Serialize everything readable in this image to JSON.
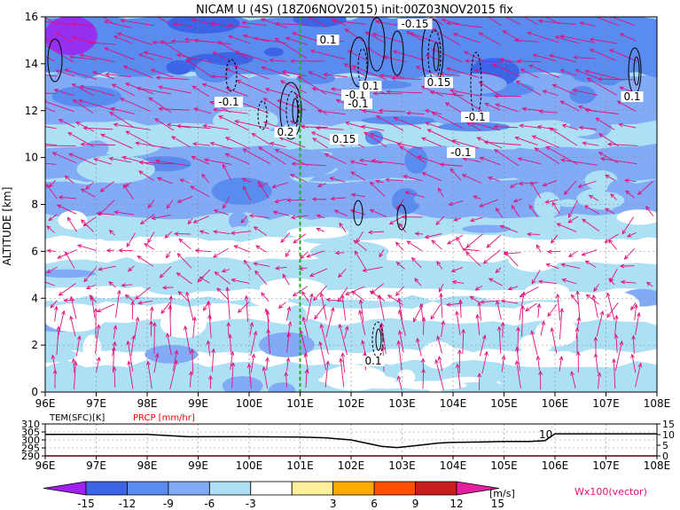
{
  "chart_data": [
    {
      "type": "heatmap",
      "title": "NICAM U (4S) (18Z06NOV2015) init:00Z03NOV2015 fix",
      "xlabel": "",
      "ylabel": "ALTITUDE [km]",
      "xlim": [
        96,
        108
      ],
      "ylim": [
        0,
        16
      ],
      "x_ticks": [
        "96E",
        "97E",
        "98E",
        "99E",
        "100E",
        "101E",
        "102E",
        "103E",
        "104E",
        "105E",
        "106E",
        "107E",
        "108E"
      ],
      "y_ticks": [
        "0",
        "2",
        "4",
        "6",
        "8",
        "10",
        "12",
        "14",
        "16"
      ],
      "marker_line_lon": 101,
      "colorbar": {
        "unit": "[m/s]",
        "levels": [
          "-15",
          "-12",
          "-9",
          "-6",
          "-3",
          "3",
          "6",
          "9",
          "12",
          "15"
        ],
        "colors": [
          "#a020f0",
          "#3c64e6",
          "#5a8cf0",
          "#82aaf5",
          "#aee0f5",
          "#ffffff",
          "#fff09a",
          "#ffaa00",
          "#ff5000",
          "#c81e1e",
          "#e61ea0"
        ]
      },
      "vector_label": "Wx100(vector)",
      "vector_color": "#e0107a",
      "contour_labels": [
        "0.1",
        "-0.1",
        "0.15",
        "-0.15",
        "0.2",
        "-0.1",
        "0.1",
        "-0.1",
        "0.15",
        "-0.1",
        "0.1",
        "0.1",
        "-0.1"
      ],
      "grid": true
    },
    {
      "type": "line",
      "xlim": [
        96,
        108
      ],
      "x_ticks": [
        "96E",
        "97E",
        "98E",
        "99E",
        "100E",
        "101E",
        "102E",
        "103E",
        "104E",
        "105E",
        "106E",
        "107E",
        "108E"
      ],
      "left_axis_label": "TEM(SFC)[K]",
      "left_ticks": [
        "290",
        "295",
        "300",
        "305",
        "310"
      ],
      "right_axis_label": "PRCP [mm/hr]",
      "right_ticks": [
        "0",
        "5",
        "10",
        "15"
      ],
      "grid": true,
      "series": [
        {
          "name": "TEM(SFC)[K]",
          "color": "#000000",
          "x": [
            96,
            97,
            98,
            98.8,
            100,
            101,
            101.5,
            102,
            102.3,
            102.6,
            102.9,
            103.3,
            103.7,
            104,
            104.5,
            105,
            105.5,
            105.8,
            106,
            107,
            108
          ],
          "y": [
            303.5,
            303.5,
            303.5,
            302.0,
            302.0,
            301.8,
            301.3,
            300.0,
            298.0,
            296.0,
            295.2,
            296.5,
            298.0,
            298.5,
            298.7,
            299.0,
            299.0,
            299.5,
            303.8,
            303.8,
            303.8
          ]
        },
        {
          "name": "PRCP [mm/hr]",
          "color": "#ff0000",
          "x": [
            96,
            108
          ],
          "y": [
            0,
            0
          ]
        }
      ],
      "annotations": [
        "10"
      ]
    }
  ]
}
